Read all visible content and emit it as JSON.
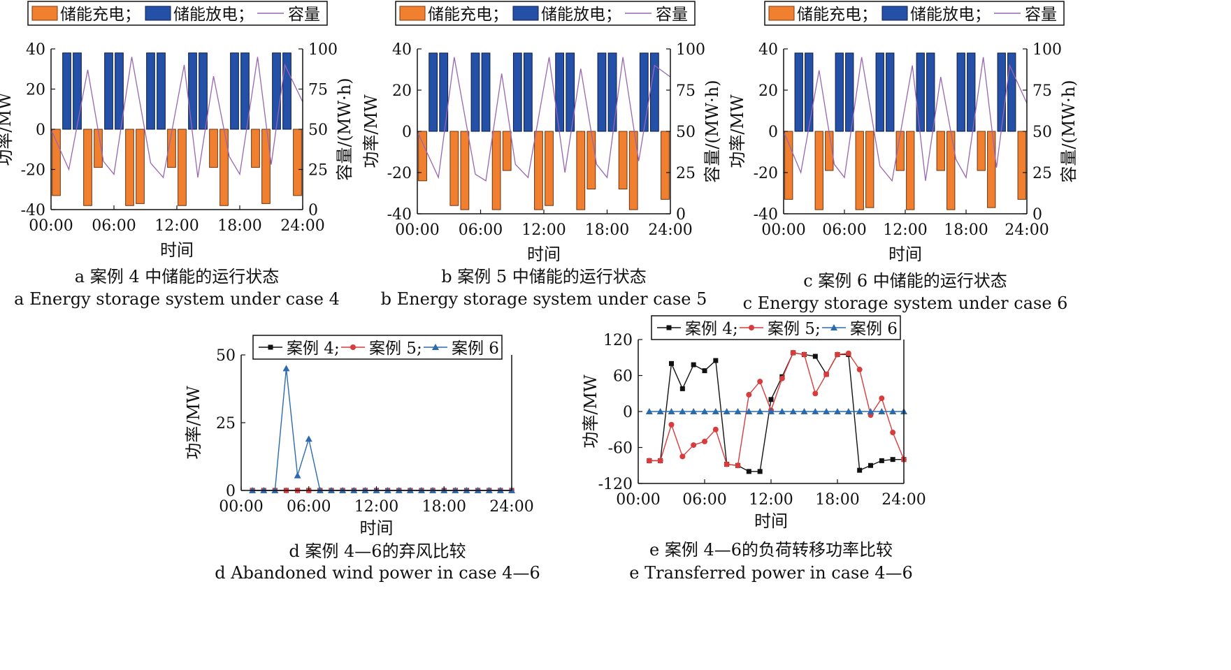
{
  "colors": {
    "charge": "#F08030",
    "discharge": "#2450A8",
    "capacity": "#9966B2",
    "case4": "#111111",
    "case5": "#D83C3C",
    "case6": "#2C6AAE"
  },
  "chart_data": [
    {
      "id": "a",
      "type": "bar",
      "legend": {
        "charge": "储能充电；",
        "discharge": "储能放电；",
        "capacity": "容量"
      },
      "xlabel": "时间",
      "ylabel": "功率/MW",
      "y2label": "容量/(MW·h)",
      "xticks": [
        "00:00",
        "06:00",
        "12:00",
        "18:00",
        "24:00"
      ],
      "yticks": [
        "40",
        "20",
        "0",
        "-20",
        "-40"
      ],
      "y2ticks": [
        "100",
        "75",
        "50",
        "25",
        "0"
      ],
      "ylim": [
        -40,
        40
      ],
      "y2lim": [
        0,
        100
      ],
      "xlim": [
        0,
        24
      ],
      "bars": [
        {
          "t": 1,
          "v": -33
        },
        {
          "t": 2,
          "v": 38
        },
        {
          "t": 3,
          "v": 38
        },
        {
          "t": 4,
          "v": -38
        },
        {
          "t": 5,
          "v": -19
        },
        {
          "t": 6,
          "v": 38
        },
        {
          "t": 7,
          "v": 38
        },
        {
          "t": 8,
          "v": -38
        },
        {
          "t": 9,
          "v": -37
        },
        {
          "t": 10,
          "v": 38
        },
        {
          "t": 11,
          "v": 38
        },
        {
          "t": 12,
          "v": -19
        },
        {
          "t": 13,
          "v": -38
        },
        {
          "t": 14,
          "v": 38
        },
        {
          "t": 15,
          "v": 38
        },
        {
          "t": 16,
          "v": -19
        },
        {
          "t": 17,
          "v": -38
        },
        {
          "t": 18,
          "v": 38
        },
        {
          "t": 19,
          "v": 38
        },
        {
          "t": 20,
          "v": -19
        },
        {
          "t": 21,
          "v": -37
        },
        {
          "t": 22,
          "v": 38
        },
        {
          "t": 23,
          "v": 38
        },
        {
          "t": 24,
          "v": -33
        }
      ],
      "capacity": [
        [
          0,
          50
        ],
        [
          1.7,
          25
        ],
        [
          3.5,
          87
        ],
        [
          5,
          30
        ],
        [
          6,
          22
        ],
        [
          7.7,
          95
        ],
        [
          9.5,
          29
        ],
        [
          10.7,
          20
        ],
        [
          12.7,
          90
        ],
        [
          14,
          20
        ],
        [
          15.5,
          83
        ],
        [
          17,
          33
        ],
        [
          18,
          22
        ],
        [
          19.7,
          95
        ],
        [
          21,
          28
        ],
        [
          22.3,
          90
        ],
        [
          24,
          67
        ]
      ],
      "caption_cn": "a  案例 4 中储能的运行状态",
      "caption_en": "a  Energy storage system under case 4"
    },
    {
      "id": "b",
      "type": "bar",
      "legend": {
        "charge": "储能充电；",
        "discharge": "储能放电；",
        "capacity": "容量"
      },
      "xlabel": "时间",
      "ylabel": "功率/MW",
      "y2label": "容量/(MW·h)",
      "xticks": [
        "00:00",
        "06:00",
        "12:00",
        "18:00",
        "24:00"
      ],
      "yticks": [
        "40",
        "20",
        "0",
        "-20",
        "-40"
      ],
      "y2ticks": [
        "100",
        "75",
        "50",
        "25",
        "0"
      ],
      "ylim": [
        -40,
        40
      ],
      "y2lim": [
        0,
        100
      ],
      "xlim": [
        0,
        24
      ],
      "bars": [
        {
          "t": 1,
          "v": -24
        },
        {
          "t": 2,
          "v": 38
        },
        {
          "t": 3,
          "v": 38
        },
        {
          "t": 4,
          "v": -36
        },
        {
          "t": 5,
          "v": -38
        },
        {
          "t": 6,
          "v": 38
        },
        {
          "t": 7,
          "v": 38
        },
        {
          "t": 8,
          "v": -38
        },
        {
          "t": 9,
          "v": -19
        },
        {
          "t": 10,
          "v": 38
        },
        {
          "t": 11,
          "v": 38
        },
        {
          "t": 12,
          "v": -38
        },
        {
          "t": 13,
          "v": -36
        },
        {
          "t": 14,
          "v": 38
        },
        {
          "t": 15,
          "v": 38
        },
        {
          "t": 16,
          "v": -38
        },
        {
          "t": 17,
          "v": -28
        },
        {
          "t": 18,
          "v": 38
        },
        {
          "t": 19,
          "v": 38
        },
        {
          "t": 20,
          "v": -28
        },
        {
          "t": 21,
          "v": -38
        },
        {
          "t": 22,
          "v": 38
        },
        {
          "t": 23,
          "v": 38
        },
        {
          "t": 24,
          "v": -33
        }
      ],
      "capacity": [
        [
          0,
          50
        ],
        [
          2,
          22
        ],
        [
          3.5,
          95
        ],
        [
          5.5,
          24
        ],
        [
          6.5,
          20
        ],
        [
          8,
          85
        ],
        [
          9.3,
          30
        ],
        [
          10.5,
          22
        ],
        [
          12.5,
          95
        ],
        [
          14,
          25
        ],
        [
          15.5,
          88
        ],
        [
          17,
          30
        ],
        [
          18,
          22
        ],
        [
          19.5,
          95
        ],
        [
          21,
          32
        ],
        [
          22.5,
          90
        ],
        [
          24,
          83
        ]
      ],
      "caption_cn": "b  案例 5 中储能的运行状态",
      "caption_en": "b  Energy storage system under case 5"
    },
    {
      "id": "c",
      "type": "bar",
      "legend": {
        "charge": "储能充电；",
        "discharge": "储能放电；",
        "capacity": "容量"
      },
      "xlabel": "时间",
      "ylabel": "功率/MW",
      "y2label": "容量/(MW·h)",
      "xticks": [
        "00:00",
        "06:00",
        "12:00",
        "18:00",
        "24:00"
      ],
      "yticks": [
        "40",
        "20",
        "0",
        "-20",
        "-40"
      ],
      "y2ticks": [
        "100",
        "75",
        "50",
        "25",
        "0"
      ],
      "ylim": [
        -40,
        40
      ],
      "y2lim": [
        0,
        100
      ],
      "xlim": [
        0,
        24
      ],
      "bars": [
        {
          "t": 1,
          "v": -33
        },
        {
          "t": 2,
          "v": 38
        },
        {
          "t": 3,
          "v": 38
        },
        {
          "t": 4,
          "v": -38
        },
        {
          "t": 5,
          "v": -19
        },
        {
          "t": 6,
          "v": 38
        },
        {
          "t": 7,
          "v": 38
        },
        {
          "t": 8,
          "v": -38
        },
        {
          "t": 9,
          "v": -37
        },
        {
          "t": 10,
          "v": 38
        },
        {
          "t": 11,
          "v": 38
        },
        {
          "t": 12,
          "v": -19
        },
        {
          "t": 13,
          "v": -38
        },
        {
          "t": 14,
          "v": 38
        },
        {
          "t": 15,
          "v": 38
        },
        {
          "t": 16,
          "v": -19
        },
        {
          "t": 17,
          "v": -38
        },
        {
          "t": 18,
          "v": 38
        },
        {
          "t": 19,
          "v": 38
        },
        {
          "t": 20,
          "v": -19
        },
        {
          "t": 21,
          "v": -37
        },
        {
          "t": 22,
          "v": 38
        },
        {
          "t": 23,
          "v": 38
        },
        {
          "t": 24,
          "v": -33
        }
      ],
      "capacity": [
        [
          0,
          50
        ],
        [
          1.7,
          25
        ],
        [
          3.5,
          87
        ],
        [
          5,
          30
        ],
        [
          6,
          22
        ],
        [
          7.7,
          95
        ],
        [
          9.5,
          29
        ],
        [
          10.7,
          20
        ],
        [
          12.7,
          90
        ],
        [
          14,
          20
        ],
        [
          15.5,
          83
        ],
        [
          17,
          33
        ],
        [
          18,
          22
        ],
        [
          19.7,
          95
        ],
        [
          21,
          28
        ],
        [
          22.3,
          90
        ],
        [
          24,
          67
        ]
      ],
      "caption_cn": "c  案例 6 中储能的运行状态",
      "caption_en": "c  Energy storage system under case 6"
    },
    {
      "id": "d",
      "type": "line",
      "legend": [
        "案例 4;",
        "案例 5;",
        "案例 6"
      ],
      "xlabel": "时间",
      "ylabel": "功率/MW",
      "xticks": [
        "00:00",
        "06:00",
        "12:00",
        "18:00",
        "24:00"
      ],
      "yticks": [
        "50",
        "25",
        "0"
      ],
      "ylim": [
        0,
        50
      ],
      "xlim": [
        0,
        24
      ],
      "x": [
        1,
        2,
        3,
        4,
        5,
        6,
        7,
        8,
        9,
        10,
        11,
        12,
        13,
        14,
        15,
        16,
        17,
        18,
        19,
        20,
        21,
        22,
        23,
        24
      ],
      "series": [
        {
          "name": "案例 4;",
          "values": [
            0,
            0,
            0,
            0,
            0,
            0,
            0,
            0,
            0,
            0,
            0,
            0,
            0,
            0,
            0,
            0,
            0,
            0,
            0,
            0,
            0,
            0,
            0,
            0
          ]
        },
        {
          "name": "案例 5;",
          "values": [
            0,
            0,
            0,
            0,
            0,
            0,
            0,
            0,
            0,
            0,
            0,
            0,
            0,
            0,
            0,
            0,
            0,
            0,
            0,
            0,
            0,
            0,
            0,
            0
          ]
        },
        {
          "name": "案例 6",
          "values": [
            0,
            0,
            0,
            45,
            5.5,
            19,
            0,
            0,
            0,
            0,
            0,
            0,
            0,
            0,
            0,
            0,
            0,
            0,
            0,
            0,
            0,
            0,
            0,
            0
          ]
        }
      ],
      "caption_cn": "d  案例 4—6的弃风比较",
      "caption_en": "d  Abandoned wind power in case 4—6"
    },
    {
      "id": "e",
      "type": "line",
      "legend": [
        "案例 4;",
        "案例 5;",
        "案例 6"
      ],
      "xlabel": "时间",
      "ylabel": "功率/MW",
      "xticks": [
        "00:00",
        "06:00",
        "12:00",
        "18:00",
        "24:00"
      ],
      "yticks": [
        "120",
        "60",
        "0",
        "-60",
        "-120"
      ],
      "ylim": [
        -120,
        120
      ],
      "xlim": [
        0,
        24
      ],
      "x": [
        1,
        2,
        3,
        4,
        5,
        6,
        7,
        8,
        9,
        10,
        11,
        12,
        13,
        14,
        15,
        16,
        17,
        18,
        19,
        20,
        21,
        22,
        23,
        24
      ],
      "series": [
        {
          "name": "案例 4;",
          "values": [
            -82,
            -82,
            80,
            38,
            78,
            68,
            85,
            -88,
            -90,
            -100,
            -100,
            20,
            58,
            98,
            95,
            92,
            62,
            95,
            95,
            -98,
            -90,
            -82,
            -80,
            -80
          ]
        },
        {
          "name": "案例 5;",
          "values": [
            -82,
            -82,
            -22,
            -75,
            -56,
            -50,
            -30,
            -88,
            -90,
            28,
            50,
            2,
            55,
            98,
            95,
            30,
            62,
            95,
            97,
            70,
            -6,
            22,
            -35,
            -80
          ]
        },
        {
          "name": "案例 6",
          "values": [
            0,
            0,
            0,
            0,
            0,
            0,
            0,
            0,
            0,
            0,
            0,
            0,
            0,
            0,
            0,
            0,
            0,
            0,
            0,
            0,
            0,
            0,
            0,
            0
          ]
        }
      ],
      "caption_cn": "e  案例 4—6的负荷转移功率比较",
      "caption_en": "e  Transferred power in case 4—6"
    }
  ]
}
